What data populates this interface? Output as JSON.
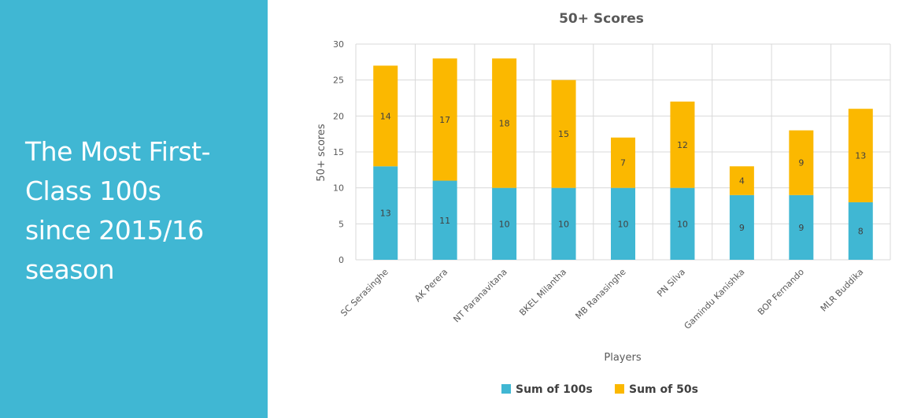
{
  "slide": {
    "title_lines": [
      "The Most First-",
      "Class 100s",
      "since 2015/16",
      "season"
    ],
    "panel_color": "#40b7d3"
  },
  "chart_data": {
    "type": "bar",
    "stacked": true,
    "title": "50+ Scores",
    "xlabel": "Players",
    "ylabel": "50+ scores",
    "ylim": [
      0,
      30
    ],
    "yticks": [
      0,
      5,
      10,
      15,
      20,
      25,
      30
    ],
    "grid": true,
    "legend_position": "bottom",
    "categories": [
      "SC Serasinghe",
      "AK Perera",
      "NT Paranavitana",
      "BKEL Milantha",
      "MB Ranasinghe",
      "PN Silva",
      "Gamindu Kanishka",
      "BOP Fernando",
      "MLR Buddika"
    ],
    "series": [
      {
        "name": "Sum of 100s",
        "color": "#40b7d3",
        "values": [
          13,
          11,
          10,
          10,
          10,
          10,
          9,
          9,
          8
        ]
      },
      {
        "name": "Sum of 50s",
        "color": "#fbb800",
        "values": [
          14,
          17,
          18,
          15,
          7,
          12,
          4,
          9,
          13
        ]
      }
    ]
  }
}
